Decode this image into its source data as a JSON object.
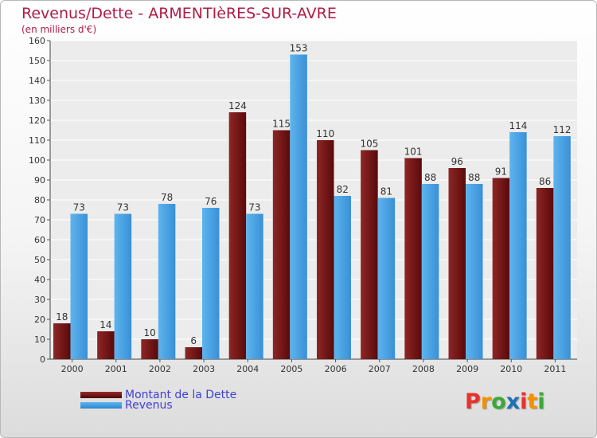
{
  "chart_data": {
    "type": "bar",
    "title": "Revenus/Dette - ARMENTIèRES-SUR-AVRE",
    "subtitle": "(en milliers d'€)",
    "categories": [
      "2000",
      "2001",
      "2002",
      "2003",
      "2004",
      "2005",
      "2006",
      "2007",
      "2008",
      "2009",
      "2010",
      "2011"
    ],
    "series": [
      {
        "name": "Montant de la Dette",
        "color": "#7a1a1a",
        "values": [
          18,
          14,
          10,
          6,
          124,
          115,
          110,
          105,
          101,
          96,
          91,
          86
        ]
      },
      {
        "name": "Revenus",
        "color": "#4aa3e6",
        "values": [
          73,
          73,
          78,
          76,
          73,
          153,
          82,
          81,
          88,
          88,
          114,
          112
        ]
      }
    ],
    "ylim": [
      0,
      160
    ],
    "ytick_step": 10,
    "grid": true,
    "legend": "bottom-left",
    "data_labels": true
  },
  "logo": {
    "letters": [
      "P",
      "r",
      "o",
      "x",
      "i",
      "t",
      "i"
    ],
    "colors": [
      "#e8332a",
      "#f39200",
      "#3aaa35",
      "#1d71b8",
      "#e8332a",
      "#f39200",
      "#3aaa35"
    ]
  }
}
